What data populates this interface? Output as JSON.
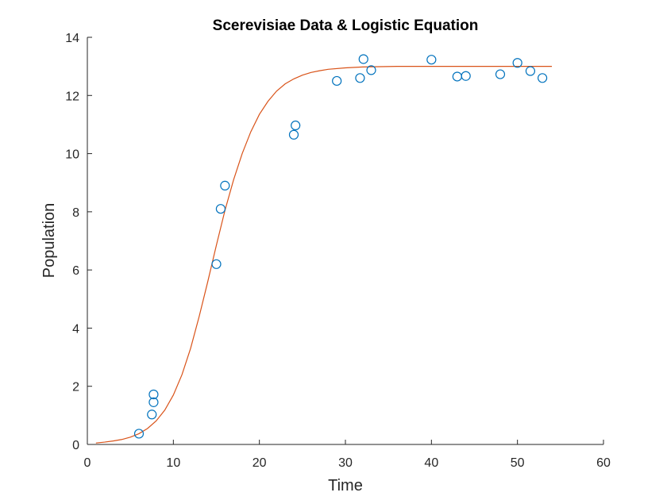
{
  "chart_data": {
    "type": "scatter",
    "title": "Scerevisiae Data & Logistic Equation",
    "xlabel": "Time",
    "ylabel": "Population",
    "xlim": [
      0,
      60
    ],
    "ylim": [
      0,
      14
    ],
    "xticks": [
      0,
      10,
      20,
      30,
      40,
      50,
      60
    ],
    "yticks": [
      0,
      2,
      4,
      6,
      8,
      10,
      12,
      14
    ],
    "grid": false,
    "legend": "none",
    "series": [
      {
        "type": "scatter",
        "marker": "circle",
        "color": "#0072BD",
        "x": [
          6.0,
          7.5,
          7.7,
          7.7,
          15.0,
          15.5,
          16.0,
          24.0,
          24.2,
          29.0,
          31.7,
          32.1,
          33.0,
          40.0,
          43.0,
          44.0,
          48.0,
          50.0,
          51.5,
          52.9
        ],
        "y": [
          0.37,
          1.03,
          1.45,
          1.72,
          6.2,
          8.1,
          8.9,
          10.65,
          10.97,
          12.5,
          12.6,
          13.25,
          12.87,
          13.23,
          12.65,
          12.67,
          12.73,
          13.12,
          12.84,
          12.6
        ]
      },
      {
        "type": "line",
        "color": "#D95319",
        "x": [
          1,
          2,
          3,
          4,
          5,
          6,
          7,
          8,
          9,
          10,
          11,
          12,
          13,
          14,
          15,
          16,
          17,
          18,
          19,
          20,
          21,
          22,
          23,
          24,
          25,
          26,
          27,
          28,
          30,
          32,
          34,
          36,
          38,
          40,
          44,
          48,
          52,
          54
        ],
        "y": [
          0.05,
          0.08,
          0.12,
          0.17,
          0.25,
          0.37,
          0.55,
          0.81,
          1.18,
          1.7,
          2.4,
          3.3,
          4.4,
          5.6,
          6.85,
          8.05,
          9.1,
          10.0,
          10.75,
          11.35,
          11.8,
          12.15,
          12.4,
          12.57,
          12.7,
          12.79,
          12.85,
          12.9,
          12.95,
          12.98,
          12.99,
          13.0,
          13.0,
          13.0,
          13.0,
          13.0,
          13.0,
          13.0
        ]
      }
    ]
  }
}
